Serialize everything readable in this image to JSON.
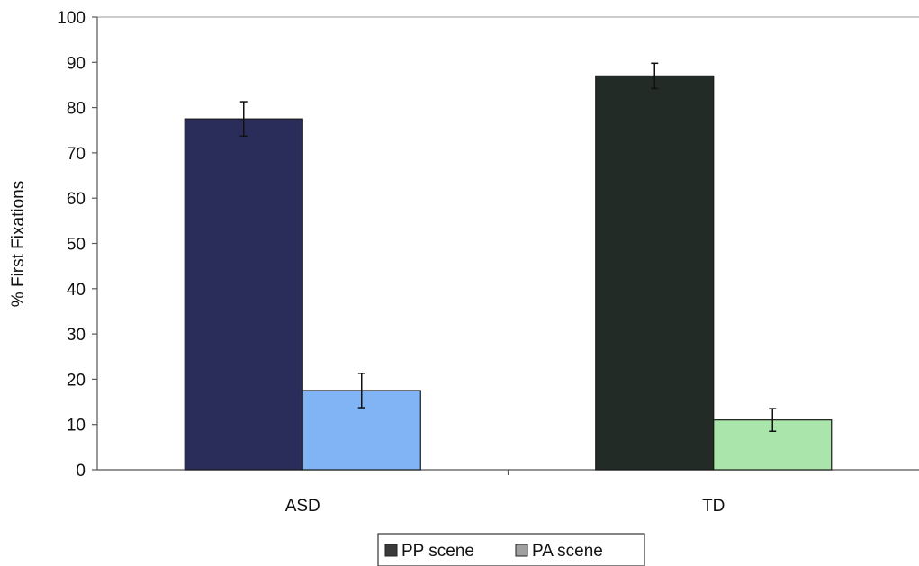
{
  "chart_data": {
    "type": "bar",
    "title": "",
    "xlabel": "",
    "ylabel": "% First Fixations",
    "ylim": [
      0,
      100
    ],
    "yticks": [
      "0",
      "10",
      "20",
      "30",
      "40",
      "50",
      "60",
      "70",
      "80",
      "90",
      "100"
    ],
    "categories": [
      "ASD",
      "TD"
    ],
    "grid": false,
    "legend_position": "bottom",
    "series": [
      {
        "name": "PP scene",
        "values": [
          77.5,
          87
        ],
        "errors": [
          3.8,
          2.8
        ],
        "colors": [
          "#2a2c5a",
          "#232b26"
        ],
        "legend_color": "#3a3a3a"
      },
      {
        "name": "PA scene",
        "values": [
          17.5,
          11
        ],
        "errors": [
          3.8,
          2.5
        ],
        "colors": [
          "#80b4f4",
          "#aae6ac"
        ],
        "legend_color": "#a0a0a0"
      }
    ]
  }
}
